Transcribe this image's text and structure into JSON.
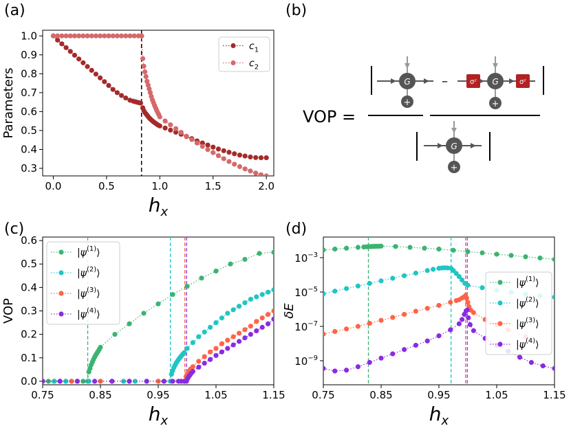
{
  "panel_labels": {
    "a": "(a)",
    "b": "(b)",
    "c": "(c)",
    "d": "(d)"
  },
  "colors": {
    "c1": "#a52a2a",
    "c2": "#d46a6a",
    "psi1": "#3cb371",
    "psi2": "#20c5c5",
    "psi3": "#ff6347",
    "psi4": "#8a2be2",
    "box": "#b22222",
    "node": "#555555"
  },
  "diagram": {
    "lhs": "VOP =",
    "minus": "–",
    "g_node": "G",
    "plus_node": "+",
    "sigma_left": "σᶻ",
    "sigma_right": "σᶻ"
  },
  "chart_data": [
    {
      "id": "a",
      "type": "scatter",
      "title": "",
      "xlabel": "h",
      "xlabel_sub": "x",
      "ylabel": "Parameters",
      "xlim": [
        -0.1,
        2.07
      ],
      "ylim": [
        0.26,
        1.03
      ],
      "xticks": [
        0.0,
        0.5,
        1.0,
        1.5,
        2.0
      ],
      "xtick_labels": [
        "0.0",
        "0.5",
        "1.0",
        "1.5",
        "2.0"
      ],
      "yticks": [
        0.3,
        0.4,
        0.5,
        0.6,
        0.7,
        0.8,
        0.9,
        1.0
      ],
      "ytick_labels": [
        "0.3",
        "0.4",
        "0.5",
        "0.6",
        "0.7",
        "0.8",
        "0.9",
        "1.0"
      ],
      "vline": 0.828,
      "legend": {
        "position": "top-right",
        "entries": [
          {
            "main": "c",
            "sub": "1"
          },
          {
            "main": "c",
            "sub": "2"
          }
        ]
      },
      "series": [
        {
          "name": "c1",
          "color_key": "c1",
          "x": [
            0.0,
            0.04,
            0.08,
            0.12,
            0.16,
            0.2,
            0.24,
            0.28,
            0.32,
            0.36,
            0.4,
            0.44,
            0.48,
            0.52,
            0.56,
            0.6,
            0.64,
            0.68,
            0.72,
            0.75,
            0.77,
            0.79,
            0.81,
            0.82,
            0.84,
            0.85,
            0.86,
            0.87,
            0.88,
            0.89,
            0.9,
            0.91,
            0.92,
            0.93,
            0.94,
            0.95,
            0.96,
            0.97,
            0.98,
            0.99,
            1.0,
            1.05,
            1.1,
            1.15,
            1.2,
            1.25,
            1.3,
            1.35,
            1.4,
            1.45,
            1.5,
            1.55,
            1.6,
            1.65,
            1.7,
            1.75,
            1.8,
            1.85,
            1.9,
            1.95,
            2.0
          ],
          "y": [
            1.0,
            0.978,
            0.958,
            0.938,
            0.918,
            0.898,
            0.878,
            0.858,
            0.838,
            0.818,
            0.798,
            0.778,
            0.758,
            0.738,
            0.717,
            0.7,
            0.685,
            0.672,
            0.66,
            0.655,
            0.652,
            0.649,
            0.646,
            0.645,
            0.62,
            0.605,
            0.595,
            0.588,
            0.581,
            0.574,
            0.567,
            0.561,
            0.556,
            0.551,
            0.546,
            0.542,
            0.538,
            0.534,
            0.53,
            0.527,
            0.524,
            0.513,
            0.502,
            0.491,
            0.48,
            0.468,
            0.457,
            0.445,
            0.434,
            0.423,
            0.412,
            0.402,
            0.393,
            0.385,
            0.377,
            0.37,
            0.365,
            0.36,
            0.357,
            0.356,
            0.356
          ]
        },
        {
          "name": "c2",
          "color_key": "c2",
          "x": [
            0.0,
            0.04,
            0.08,
            0.12,
            0.16,
            0.2,
            0.24,
            0.28,
            0.32,
            0.36,
            0.4,
            0.44,
            0.48,
            0.52,
            0.56,
            0.6,
            0.64,
            0.68,
            0.72,
            0.76,
            0.8,
            0.83,
            0.84,
            0.85,
            0.86,
            0.87,
            0.88,
            0.89,
            0.9,
            0.91,
            0.92,
            0.93,
            0.94,
            0.95,
            0.96,
            0.97,
            0.98,
            0.99,
            1.0,
            1.05,
            1.1,
            1.15,
            1.2,
            1.25,
            1.3,
            1.35,
            1.4,
            1.45,
            1.5,
            1.55,
            1.6,
            1.65,
            1.7,
            1.75,
            1.8,
            1.85,
            1.9,
            1.95,
            2.0
          ],
          "y": [
            1.0,
            1.0,
            1.0,
            1.0,
            1.0,
            1.0,
            1.0,
            1.0,
            1.0,
            1.0,
            1.0,
            1.0,
            1.0,
            1.0,
            1.0,
            1.0,
            1.0,
            1.0,
            1.0,
            1.0,
            1.0,
            1.0,
            0.88,
            0.84,
            0.81,
            0.785,
            0.76,
            0.74,
            0.72,
            0.7,
            0.68,
            0.662,
            0.648,
            0.633,
            0.62,
            0.607,
            0.595,
            0.584,
            0.572,
            0.55,
            0.53,
            0.51,
            0.49,
            0.47,
            0.452,
            0.434,
            0.416,
            0.399,
            0.383,
            0.367,
            0.351,
            0.336,
            0.322,
            0.309,
            0.297,
            0.286,
            0.275,
            0.266,
            0.26
          ]
        }
      ]
    },
    {
      "id": "c",
      "type": "scatter",
      "title": "",
      "xlabel": "h",
      "xlabel_sub": "x",
      "ylabel": "VOP",
      "xlim": [
        0.75,
        1.15
      ],
      "ylim": [
        -0.015,
        0.615
      ],
      "xticks": [
        0.75,
        0.85,
        0.95,
        1.05,
        1.15
      ],
      "xtick_labels": [
        "0.75",
        "0.85",
        "0.95",
        "1.05",
        "1.15"
      ],
      "yticks": [
        0.0,
        0.1,
        0.2,
        0.3,
        0.4,
        0.5,
        0.6
      ],
      "ytick_labels": [
        "0.0",
        "0.1",
        "0.2",
        "0.3",
        "0.4",
        "0.5",
        "0.6"
      ],
      "vlines": [
        {
          "x": 0.828,
          "color_key": "psi1"
        },
        {
          "x": 0.971,
          "color_key": "psi2"
        },
        {
          "x": 0.996,
          "color_key": "psi3"
        },
        {
          "x": 0.999,
          "color_key": "psi4"
        }
      ],
      "legend": {
        "position": "top-left",
        "entries": [
          {
            "main": "|ψ",
            "sup": "(1)",
            "end": "⟩"
          },
          {
            "main": "|ψ",
            "sup": "(2)",
            "end": "⟩"
          },
          {
            "main": "|ψ",
            "sup": "(3)",
            "end": "⟩"
          },
          {
            "main": "|ψ",
            "sup": "(4)",
            "end": "⟩"
          }
        ]
      },
      "series": [
        {
          "name": "psi1",
          "color_key": "psi1",
          "x": [
            0.75,
            0.76,
            0.77,
            0.78,
            0.79,
            0.8,
            0.81,
            0.82,
            0.828,
            0.83,
            0.832,
            0.834,
            0.836,
            0.838,
            0.84,
            0.842,
            0.844,
            0.846,
            0.848,
            0.85,
            0.875,
            0.9,
            0.925,
            0.95,
            0.975,
            1.0,
            1.025,
            1.05,
            1.075,
            1.1,
            1.125,
            1.15
          ],
          "y": [
            0.0,
            0.0,
            0.0,
            0.0,
            0.0,
            0.0,
            0.0,
            0.0,
            0.0,
            0.04,
            0.055,
            0.07,
            0.082,
            0.093,
            0.103,
            0.112,
            0.12,
            0.128,
            0.136,
            0.145,
            0.2,
            0.245,
            0.29,
            0.33,
            0.37,
            0.405,
            0.44,
            0.47,
            0.5,
            0.52,
            0.545,
            0.55
          ]
        },
        {
          "name": "psi2",
          "color_key": "psi2",
          "x": [
            0.75,
            0.77,
            0.79,
            0.81,
            0.83,
            0.85,
            0.87,
            0.89,
            0.91,
            0.93,
            0.95,
            0.96,
            0.971,
            0.973,
            0.975,
            0.977,
            0.979,
            0.981,
            0.983,
            0.985,
            0.987,
            0.989,
            0.991,
            0.993,
            0.995,
            1.0,
            1.01,
            1.02,
            1.03,
            1.04,
            1.05,
            1.06,
            1.07,
            1.08,
            1.09,
            1.1,
            1.11,
            1.12,
            1.13,
            1.14,
            1.15
          ],
          "y": [
            0.0,
            0.0,
            0.0,
            0.0,
            0.0,
            0.0,
            0.0,
            0.0,
            0.0,
            0.0,
            0.0,
            0.0,
            0.0,
            0.03,
            0.045,
            0.058,
            0.068,
            0.077,
            0.085,
            0.092,
            0.099,
            0.105,
            0.111,
            0.117,
            0.122,
            0.14,
            0.165,
            0.19,
            0.21,
            0.23,
            0.25,
            0.27,
            0.29,
            0.305,
            0.32,
            0.335,
            0.35,
            0.36,
            0.37,
            0.38,
            0.39
          ]
        },
        {
          "name": "psi3",
          "color_key": "psi3",
          "x": [
            0.75,
            0.8,
            0.85,
            0.9,
            0.95,
            0.996,
            0.998,
            1.0,
            1.002,
            1.004,
            1.006,
            1.01,
            1.02,
            1.03,
            1.04,
            1.05,
            1.06,
            1.07,
            1.08,
            1.09,
            1.1,
            1.11,
            1.12,
            1.13,
            1.14,
            1.15
          ],
          "y": [
            0.0,
            0.0,
            0.0,
            0.0,
            0.0,
            0.0,
            0.02,
            0.03,
            0.038,
            0.045,
            0.052,
            0.062,
            0.085,
            0.105,
            0.125,
            0.14,
            0.16,
            0.175,
            0.19,
            0.205,
            0.22,
            0.235,
            0.255,
            0.27,
            0.285,
            0.3
          ]
        },
        {
          "name": "psi4",
          "color_key": "psi4",
          "x": [
            0.75,
            0.78,
            0.81,
            0.84,
            0.87,
            0.9,
            0.93,
            0.96,
            0.975,
            0.985,
            0.99,
            0.995,
            0.999,
            1.001,
            1.003,
            1.005,
            1.007,
            1.01,
            1.02,
            1.03,
            1.04,
            1.05,
            1.06,
            1.07,
            1.08,
            1.09,
            1.1,
            1.11,
            1.12,
            1.13,
            1.14,
            1.15
          ],
          "y": [
            0.0,
            0.0,
            0.0,
            0.0,
            0.0,
            0.0,
            0.0,
            0.0,
            0.0,
            0.0,
            0.0,
            0.0,
            0.0,
            0.012,
            0.02,
            0.027,
            0.034,
            0.042,
            0.06,
            0.077,
            0.093,
            0.11,
            0.125,
            0.14,
            0.155,
            0.17,
            0.185,
            0.2,
            0.215,
            0.23,
            0.245,
            0.265
          ]
        }
      ]
    },
    {
      "id": "d",
      "type": "scatter",
      "title": "",
      "xlabel": "h",
      "xlabel_sub": "x",
      "ylabel": "δE",
      "yscale": "log",
      "xlim": [
        0.75,
        1.15
      ],
      "ylim_log10": [
        -10.4,
        -1.8
      ],
      "xticks": [
        0.75,
        0.85,
        0.95,
        1.05,
        1.15
      ],
      "xtick_labels": [
        "0.75",
        "0.85",
        "0.95",
        "1.05",
        "1.15"
      ],
      "yticks_log10": [
        -3,
        -5,
        -7,
        -9
      ],
      "ytick_labels": [
        {
          "base": "10",
          "exp": "−3"
        },
        {
          "base": "10",
          "exp": "−5"
        },
        {
          "base": "10",
          "exp": "−7"
        },
        {
          "base": "10",
          "exp": "−9"
        }
      ],
      "vlines": [
        {
          "x": 0.828,
          "color_key": "psi1"
        },
        {
          "x": 0.971,
          "color_key": "psi2"
        },
        {
          "x": 0.996,
          "color_key": "psi3"
        },
        {
          "x": 0.999,
          "color_key": "psi4"
        }
      ],
      "legend": {
        "position": "center-right",
        "entries": [
          {
            "main": "|ψ",
            "sup": "(1)",
            "end": "⟩"
          },
          {
            "main": "|ψ",
            "sup": "(2)",
            "end": "⟩"
          },
          {
            "main": "|ψ",
            "sup": "(3)",
            "end": "⟩"
          },
          {
            "main": "|ψ",
            "sup": "(4)",
            "end": "⟩"
          }
        ]
      },
      "series": [
        {
          "name": "psi1",
          "color_key": "psi1",
          "x": [
            0.75,
            0.77,
            0.79,
            0.81,
            0.82,
            0.825,
            0.828,
            0.831,
            0.834,
            0.837,
            0.84,
            0.843,
            0.846,
            0.85,
            0.875,
            0.9,
            0.925,
            0.95,
            0.975,
            1.0,
            1.025,
            1.05,
            1.075,
            1.1,
            1.125,
            1.15
          ],
          "y_log10": [
            -2.55,
            -2.5,
            -2.45,
            -2.4,
            -2.38,
            -2.37,
            -2.36,
            -2.355,
            -2.35,
            -2.345,
            -2.34,
            -2.338,
            -2.336,
            -2.33,
            -2.35,
            -2.4,
            -2.45,
            -2.5,
            -2.57,
            -2.65,
            -2.72,
            -2.8,
            -2.87,
            -2.95,
            -3.02,
            -3.1
          ]
        },
        {
          "name": "psi2",
          "color_key": "psi2",
          "x": [
            0.75,
            0.77,
            0.79,
            0.81,
            0.83,
            0.85,
            0.87,
            0.89,
            0.91,
            0.93,
            0.94,
            0.95,
            0.955,
            0.96,
            0.965,
            0.971,
            0.975,
            0.98,
            0.985,
            0.99,
            0.995,
            1.0,
            1.025,
            1.05,
            1.075,
            1.1,
            1.125,
            1.15
          ],
          "y_log10": [
            -5.1,
            -4.95,
            -4.8,
            -4.65,
            -4.5,
            -4.35,
            -4.2,
            -4.05,
            -3.9,
            -3.75,
            -3.68,
            -3.62,
            -3.6,
            -3.59,
            -3.6,
            -3.62,
            -3.75,
            -3.92,
            -4.1,
            -4.3,
            -4.5,
            -4.6,
            -4.75,
            -4.9,
            -5.02,
            -5.12,
            -5.22,
            -5.3
          ]
        },
        {
          "name": "psi3",
          "color_key": "psi3",
          "x": [
            0.75,
            0.77,
            0.79,
            0.81,
            0.83,
            0.85,
            0.87,
            0.89,
            0.91,
            0.93,
            0.95,
            0.97,
            0.98,
            0.985,
            0.99,
            0.993,
            0.996,
            0.998,
            1.0,
            1.002,
            1.005,
            1.01,
            1.03,
            1.05,
            1.07,
            1.1
          ],
          "y_log10": [
            -7.45,
            -7.3,
            -7.15,
            -7.0,
            -6.82,
            -6.65,
            -6.48,
            -6.3,
            -6.12,
            -5.95,
            -5.78,
            -5.6,
            -5.5,
            -5.45,
            -5.35,
            -5.3,
            -5.2,
            -5.35,
            -5.6,
            -5.85,
            -6.05,
            -6.2,
            -6.6,
            -6.9,
            -7.2,
            -7.6
          ]
        },
        {
          "name": "psi4",
          "color_key": "psi4",
          "x": [
            0.75,
            0.77,
            0.79,
            0.81,
            0.83,
            0.85,
            0.87,
            0.89,
            0.91,
            0.93,
            0.95,
            0.97,
            0.985,
            0.99,
            0.994,
            0.997,
            0.999,
            1.001,
            1.004,
            1.01,
            1.03,
            1.05,
            1.07,
            1.09,
            1.11,
            1.13,
            1.15
          ],
          "y_log10": [
            -9.45,
            -9.6,
            -9.55,
            -9.35,
            -9.1,
            -8.85,
            -8.6,
            -8.35,
            -8.1,
            -7.85,
            -7.55,
            -7.2,
            -6.85,
            -6.6,
            -6.3,
            -6.1,
            -6.05,
            -6.5,
            -6.9,
            -7.25,
            -7.7,
            -8.1,
            -8.45,
            -8.8,
            -9.1,
            -9.3,
            -9.45
          ]
        }
      ]
    }
  ]
}
